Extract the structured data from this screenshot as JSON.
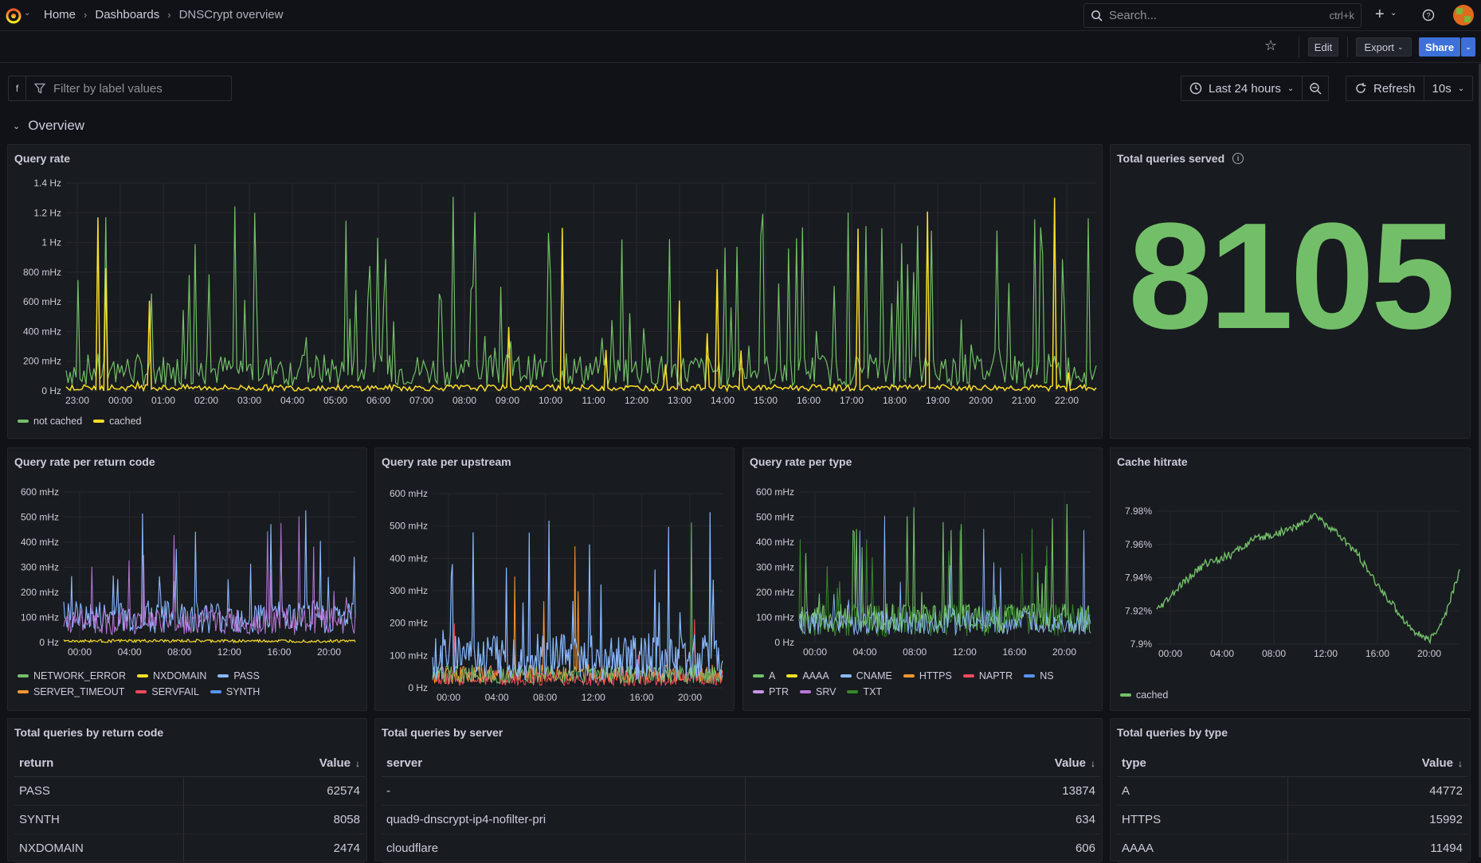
{
  "breadcrumb": {
    "home": "Home",
    "dashboards": "Dashboards",
    "current": "DNSCrypt overview"
  },
  "search": {
    "placeholder": "Search...",
    "shortcut": "ctrl+k"
  },
  "toolbar": {
    "edit": "Edit",
    "export": "Export",
    "share": "Share"
  },
  "filter": {
    "label": "f",
    "placeholder": "Filter by label values"
  },
  "time": {
    "range": "Last 24 hours",
    "refresh": "Refresh",
    "interval": "10s"
  },
  "row": {
    "title": "Overview"
  },
  "colors": {
    "green": "#73bf69",
    "yellow": "#fade2a",
    "blue": "#8ab8ff",
    "orange": "#ff9830",
    "red": "#f2495c",
    "purple": "#ca95e5",
    "lavender": "#b877d9"
  },
  "panels": {
    "query_rate": {
      "title": "Query rate",
      "yticks": [
        "1.4 Hz",
        "1.2 Hz",
        "1 Hz",
        "800 mHz",
        "600 mHz",
        "400 mHz",
        "200 mHz",
        "0 Hz"
      ],
      "xticks": [
        "23:00",
        "00:00",
        "01:00",
        "02:00",
        "03:00",
        "04:00",
        "05:00",
        "06:00",
        "07:00",
        "08:00",
        "09:00",
        "10:00",
        "11:00",
        "12:00",
        "13:00",
        "14:00",
        "15:00",
        "16:00",
        "17:00",
        "18:00",
        "19:00",
        "20:00",
        "21:00",
        "22:00"
      ],
      "legend": [
        {
          "name": "not cached",
          "color": "#73bf69"
        },
        {
          "name": "cached",
          "color": "#fade2a"
        }
      ]
    },
    "total_served": {
      "title": "Total queries served",
      "value": "8105",
      "color": "#73bf69"
    },
    "per_return_code": {
      "title": "Query rate per return code",
      "yticks": [
        "600 mHz",
        "500 mHz",
        "400 mHz",
        "300 mHz",
        "200 mHz",
        "100 mHz",
        "0 Hz"
      ],
      "xticks": [
        "00:00",
        "04:00",
        "08:00",
        "12:00",
        "16:00",
        "20:00"
      ],
      "legend": [
        {
          "name": "NETWORK_ERROR",
          "color": "#73bf69"
        },
        {
          "name": "NXDOMAIN",
          "color": "#fade2a"
        },
        {
          "name": "PASS",
          "color": "#8ab8ff"
        },
        {
          "name": "SERVER_TIMEOUT",
          "color": "#ff9830"
        },
        {
          "name": "SERVFAIL",
          "color": "#f2495c"
        },
        {
          "name": "SYNTH",
          "color": "#5794f2"
        }
      ]
    },
    "per_upstream": {
      "title": "Query rate per upstream",
      "yticks": [
        "600 mHz",
        "500 mHz",
        "400 mHz",
        "300 mHz",
        "200 mHz",
        "100 mHz",
        "0 Hz"
      ],
      "xticks": [
        "00:00",
        "04:00",
        "08:00",
        "12:00",
        "16:00",
        "20:00"
      ]
    },
    "per_type": {
      "title": "Query rate per type",
      "yticks": [
        "600 mHz",
        "500 mHz",
        "400 mHz",
        "300 mHz",
        "200 mHz",
        "100 mHz",
        "0 Hz"
      ],
      "xticks": [
        "00:00",
        "04:00",
        "08:00",
        "12:00",
        "16:00",
        "20:00"
      ],
      "legend": [
        {
          "name": "A",
          "color": "#73bf69"
        },
        {
          "name": "AAAA",
          "color": "#fade2a"
        },
        {
          "name": "CNAME",
          "color": "#8ab8ff"
        },
        {
          "name": "HTTPS",
          "color": "#ff9830"
        },
        {
          "name": "NAPTR",
          "color": "#f2495c"
        },
        {
          "name": "NS",
          "color": "#5794f2"
        },
        {
          "name": "PTR",
          "color": "#ca95e5"
        },
        {
          "name": "SRV",
          "color": "#b877d9"
        },
        {
          "name": "TXT",
          "color": "#37872d"
        }
      ]
    },
    "cache_hitrate": {
      "title": "Cache hitrate",
      "yticks": [
        "7.98%",
        "7.96%",
        "7.94%",
        "7.92%",
        "7.9%"
      ],
      "xticks": [
        "00:00",
        "04:00",
        "08:00",
        "12:00",
        "16:00",
        "20:00"
      ],
      "legend": [
        {
          "name": "cached",
          "color": "#73bf69"
        }
      ]
    },
    "by_return_code": {
      "title": "Total queries by return code",
      "col1": "return",
      "col2": "Value",
      "rows": [
        {
          "k": "PASS",
          "v": "62574"
        },
        {
          "k": "SYNTH",
          "v": "8058"
        },
        {
          "k": "NXDOMAIN",
          "v": "2474"
        }
      ]
    },
    "by_server": {
      "title": "Total queries by server",
      "col1": "server",
      "col2": "Value",
      "rows": [
        {
          "k": "-",
          "v": "13874"
        },
        {
          "k": "quad9-dnscrypt-ip4-nofilter-pri",
          "v": "634"
        },
        {
          "k": "cloudflare",
          "v": "606"
        }
      ]
    },
    "by_type": {
      "title": "Total queries by type",
      "col1": "type",
      "col2": "Value",
      "rows": [
        {
          "k": "A",
          "v": "44772"
        },
        {
          "k": "HTTPS",
          "v": "15992"
        },
        {
          "k": "AAAA",
          "v": "11494"
        }
      ]
    }
  }
}
